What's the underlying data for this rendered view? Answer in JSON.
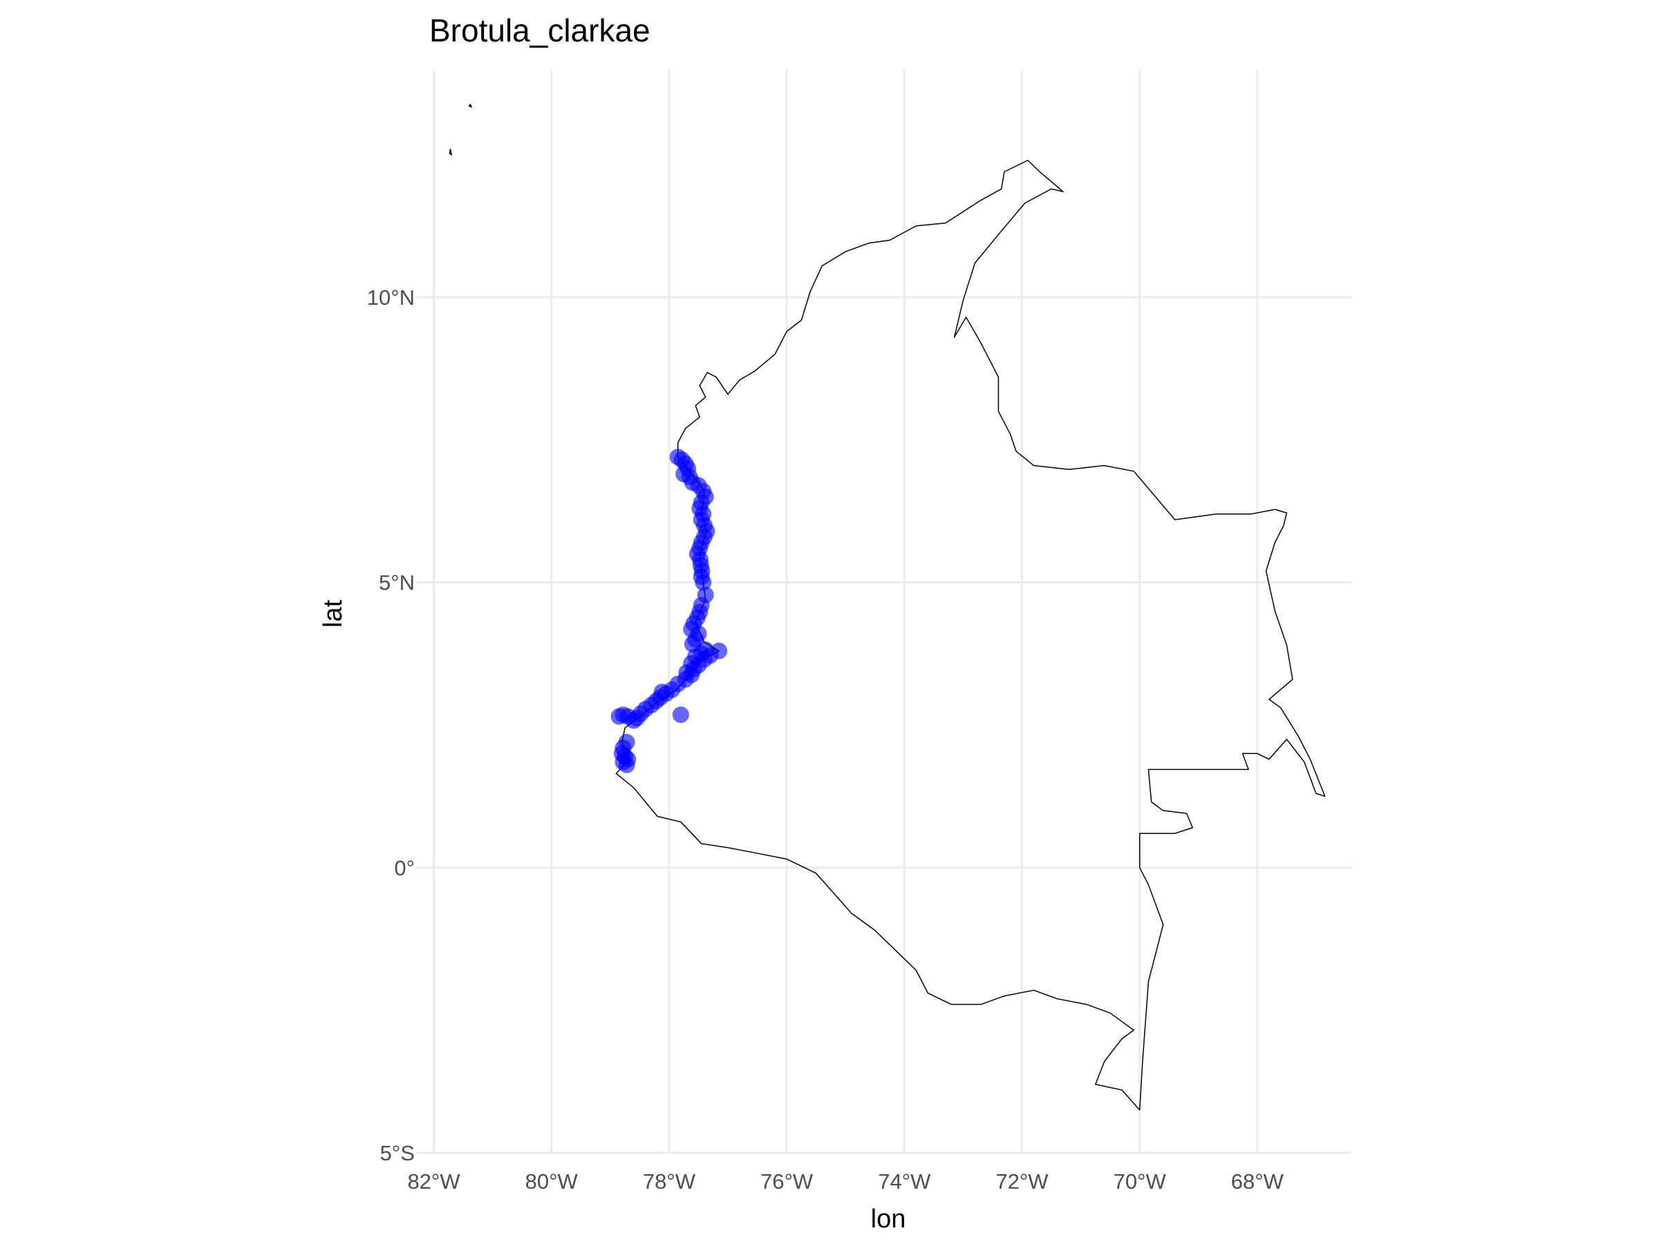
{
  "chart_data": {
    "type": "scatter",
    "title": "Brotula_clarkae",
    "xlabel": "lon",
    "ylabel": "lat",
    "xlim": [
      -82.3,
      -66.4
    ],
    "ylim": [
      -5.0,
      14.0
    ],
    "x_ticks": [
      -82,
      -80,
      -78,
      -76,
      -74,
      -72,
      -70,
      -68
    ],
    "x_tick_labels": [
      "82°W",
      "80°W",
      "78°W",
      "76°W",
      "74°W",
      "72°W",
      "70°W",
      "68°W"
    ],
    "y_ticks": [
      -5,
      0,
      5,
      10
    ],
    "y_tick_labels": [
      "5°S",
      "0°",
      "5°N",
      "10°N"
    ],
    "grid": true,
    "point_color": "#0000ff",
    "outline_color": "#000000",
    "grid_color": "#ebebeb",
    "basemap": "Colombia country outline",
    "series": [
      {
        "values": [
          [
            -77.85,
            7.2
          ],
          [
            -77.78,
            7.15
          ],
          [
            -77.72,
            7.08
          ],
          [
            -77.68,
            7.0
          ],
          [
            -77.75,
            6.9
          ],
          [
            -77.65,
            6.85
          ],
          [
            -77.6,
            6.75
          ],
          [
            -77.5,
            6.7
          ],
          [
            -77.42,
            6.6
          ],
          [
            -77.38,
            6.5
          ],
          [
            -77.45,
            6.4
          ],
          [
            -77.48,
            6.3
          ],
          [
            -77.42,
            6.2
          ],
          [
            -77.45,
            6.1
          ],
          [
            -77.4,
            6.0
          ],
          [
            -77.36,
            5.9
          ],
          [
            -77.4,
            5.8
          ],
          [
            -77.45,
            5.7
          ],
          [
            -77.48,
            5.6
          ],
          [
            -77.52,
            5.5
          ],
          [
            -77.47,
            5.4
          ],
          [
            -77.46,
            5.3
          ],
          [
            -77.44,
            5.2
          ],
          [
            -77.45,
            5.1
          ],
          [
            -77.42,
            5.0
          ],
          [
            -77.38,
            4.78
          ],
          [
            -77.45,
            4.6
          ],
          [
            -77.48,
            4.48
          ],
          [
            -77.52,
            4.38
          ],
          [
            -77.58,
            4.28
          ],
          [
            -77.62,
            4.18
          ],
          [
            -77.5,
            4.1
          ],
          [
            -77.55,
            4.0
          ],
          [
            -77.6,
            3.92
          ],
          [
            -77.38,
            3.82
          ],
          [
            -77.15,
            3.8
          ],
          [
            -77.45,
            3.75
          ],
          [
            -77.3,
            3.72
          ],
          [
            -77.55,
            3.7
          ],
          [
            -77.4,
            3.65
          ],
          [
            -77.62,
            3.58
          ],
          [
            -77.5,
            3.55
          ],
          [
            -77.58,
            3.48
          ],
          [
            -77.7,
            3.42
          ],
          [
            -77.62,
            3.38
          ],
          [
            -77.72,
            3.3
          ],
          [
            -77.85,
            3.22
          ],
          [
            -77.95,
            3.12
          ],
          [
            -78.05,
            3.05
          ],
          [
            -78.12,
            3.08
          ],
          [
            -78.15,
            2.98
          ],
          [
            -78.22,
            2.92
          ],
          [
            -78.3,
            2.85
          ],
          [
            -78.4,
            2.78
          ],
          [
            -78.48,
            2.7
          ],
          [
            -78.55,
            2.62
          ],
          [
            -78.6,
            2.58
          ],
          [
            -78.7,
            2.65
          ],
          [
            -78.78,
            2.68
          ],
          [
            -78.85,
            2.65
          ],
          [
            -77.8,
            2.68
          ],
          [
            -78.72,
            2.2
          ],
          [
            -78.78,
            2.1
          ],
          [
            -78.8,
            2.0
          ],
          [
            -78.75,
            1.95
          ],
          [
            -78.7,
            1.9
          ],
          [
            -78.78,
            1.85
          ],
          [
            -78.72,
            1.8
          ]
        ]
      }
    ]
  }
}
